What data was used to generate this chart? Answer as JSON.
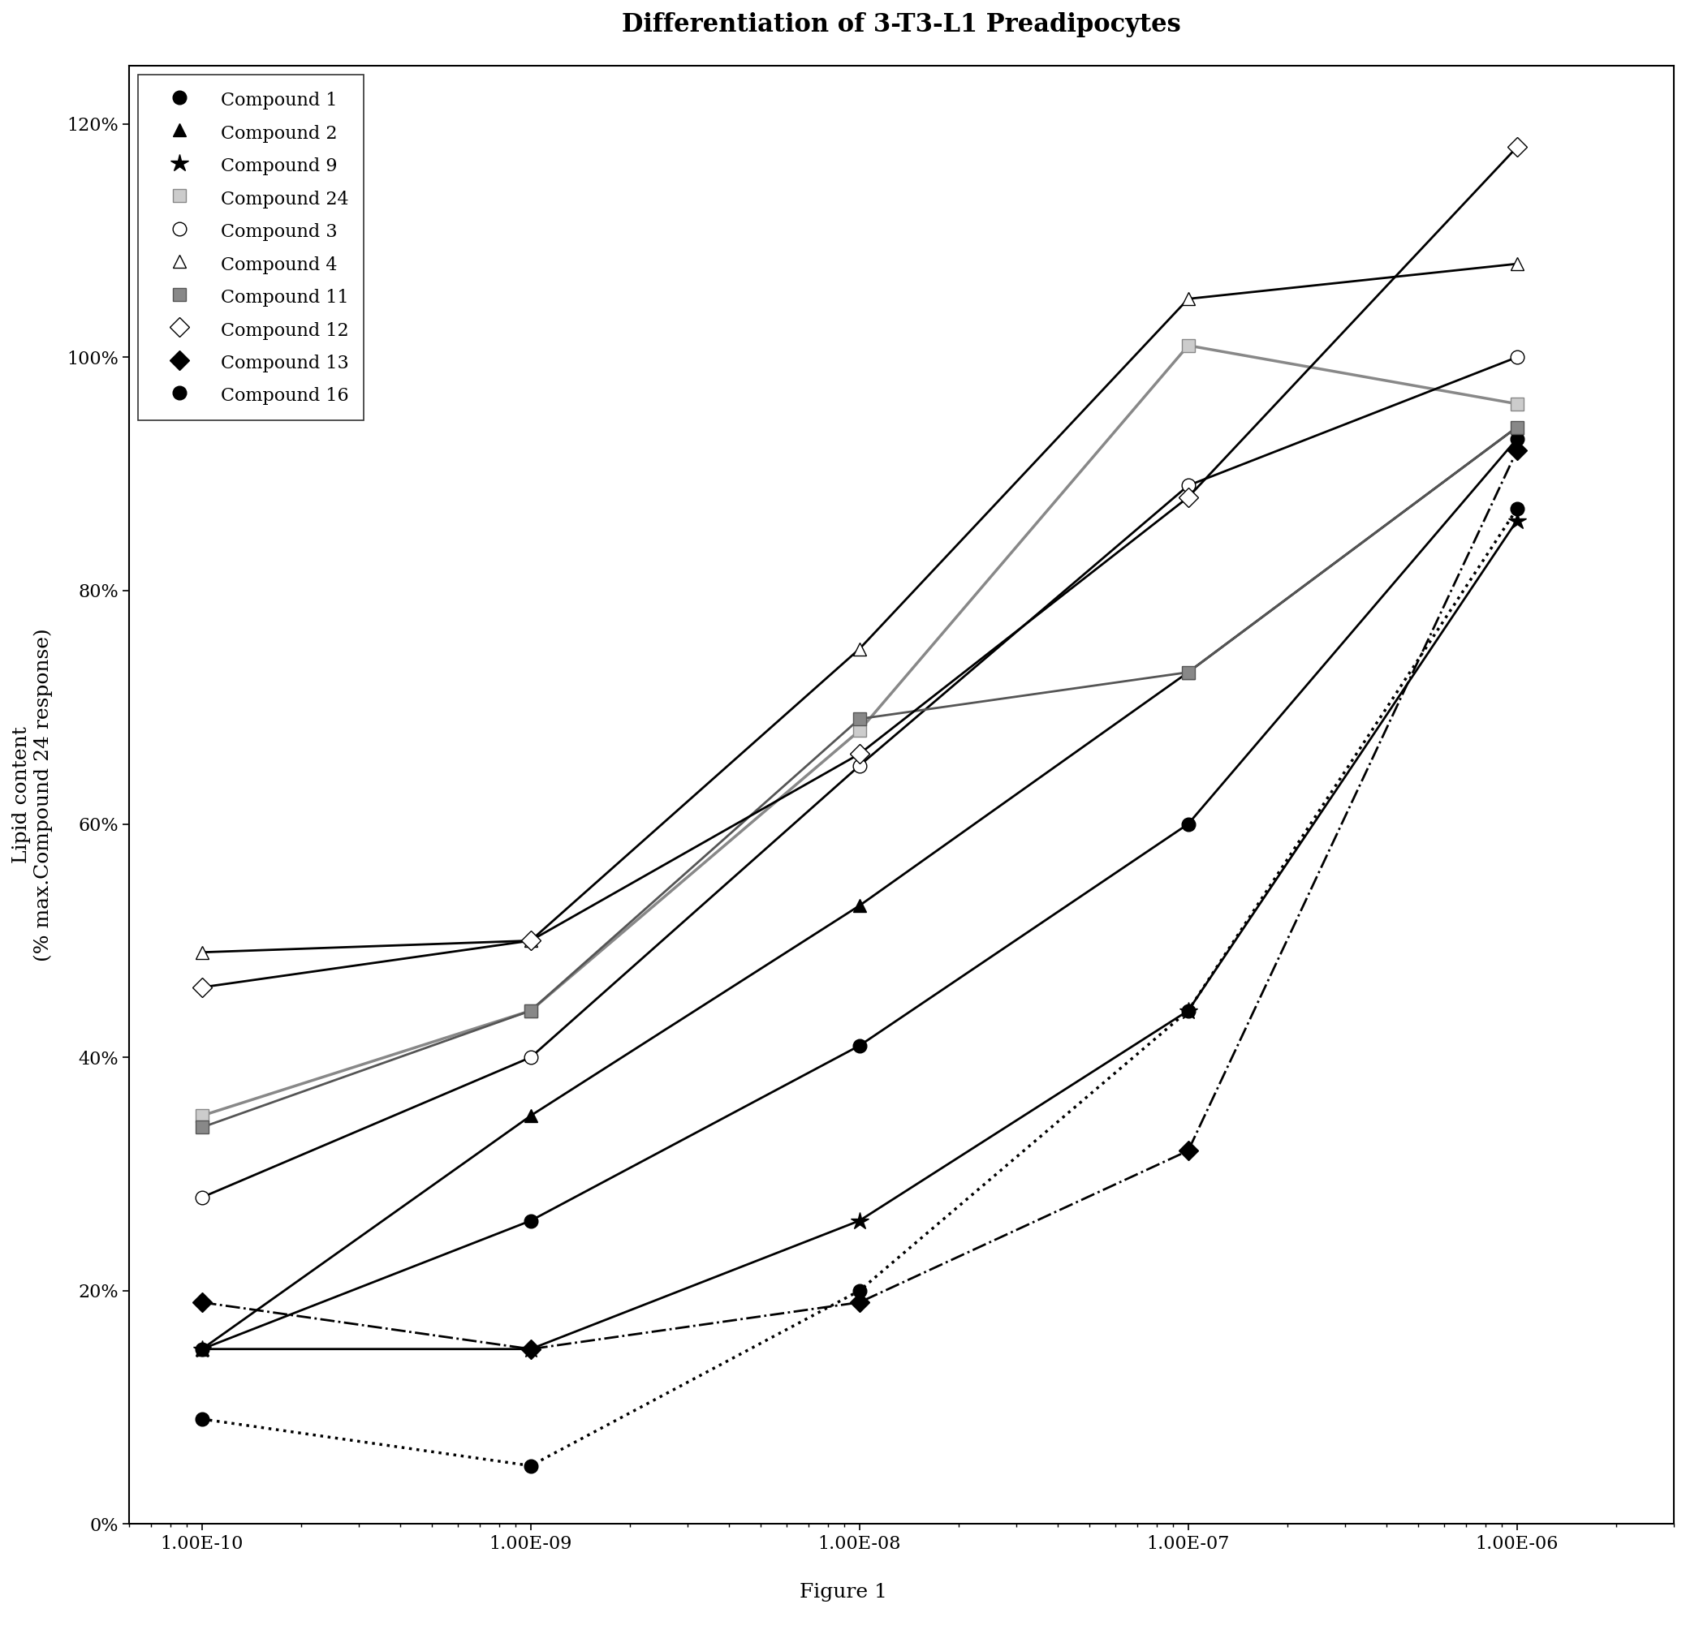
{
  "title": "Differentiation of 3-T3-L1 Preadipocytes",
  "ylabel": "Lipid content\n(% max.Compound 24 response)",
  "figure_caption": "Figure 1",
  "x_values": [
    1e-10,
    1e-09,
    1e-08,
    1e-07,
    1e-06
  ],
  "compounds": {
    "Compound 1": {
      "y": [
        0.15,
        0.26,
        0.41,
        0.6,
        0.93
      ],
      "color": "#000000",
      "linestyle": "-",
      "marker": "o",
      "markerfacecolor": "#000000",
      "markeredgecolor": "#000000",
      "markersize": 12,
      "linewidth": 2.0
    },
    "Compound 2": {
      "y": [
        0.15,
        0.35,
        0.53,
        0.73,
        0.94
      ],
      "color": "#000000",
      "linestyle": "-",
      "marker": "^",
      "markerfacecolor": "#000000",
      "markeredgecolor": "#000000",
      "markersize": 12,
      "linewidth": 2.0
    },
    "Compound 9": {
      "y": [
        0.15,
        0.15,
        0.26,
        0.44,
        0.86
      ],
      "color": "#000000",
      "linestyle": "-",
      "marker": "*",
      "markerfacecolor": "#000000",
      "markeredgecolor": "#000000",
      "markersize": 16,
      "linewidth": 2.0
    },
    "Compound 24": {
      "y": [
        0.35,
        0.44,
        0.68,
        1.01,
        0.96
      ],
      "color": "#888888",
      "linestyle": "-",
      "marker": "s",
      "markerfacecolor": "#cccccc",
      "markeredgecolor": "#888888",
      "markersize": 12,
      "linewidth": 2.5
    },
    "Compound 3": {
      "y": [
        0.28,
        0.4,
        0.65,
        0.89,
        1.0
      ],
      "color": "#000000",
      "linestyle": "-",
      "marker": "o",
      "markerfacecolor": "#ffffff",
      "markeredgecolor": "#000000",
      "markersize": 12,
      "linewidth": 2.0
    },
    "Compound 4": {
      "y": [
        0.49,
        0.5,
        0.75,
        1.05,
        1.08
      ],
      "color": "#000000",
      "linestyle": "-",
      "marker": "^",
      "markerfacecolor": "#ffffff",
      "markeredgecolor": "#000000",
      "markersize": 12,
      "linewidth": 2.0
    },
    "Compound 11": {
      "y": [
        0.34,
        0.44,
        0.69,
        0.73,
        0.94
      ],
      "color": "#555555",
      "linestyle": "-",
      "marker": "s",
      "markerfacecolor": "#888888",
      "markeredgecolor": "#555555",
      "markersize": 12,
      "linewidth": 2.0
    },
    "Compound 12": {
      "y": [
        0.46,
        0.5,
        0.66,
        0.88,
        1.18
      ],
      "color": "#000000",
      "linestyle": "-",
      "marker": "D",
      "markerfacecolor": "#ffffff",
      "markeredgecolor": "#000000",
      "markersize": 12,
      "linewidth": 2.0
    },
    "Compound 13": {
      "y": [
        0.19,
        0.15,
        0.19,
        0.32,
        0.92
      ],
      "color": "#000000",
      "linestyle": "-.",
      "marker": "D",
      "markerfacecolor": "#000000",
      "markeredgecolor": "#000000",
      "markersize": 12,
      "linewidth": 2.0
    },
    "Compound 16": {
      "y": [
        0.09,
        0.05,
        0.2,
        0.44,
        0.87
      ],
      "color": "#000000",
      "linestyle": ":",
      "marker": "o",
      "markerfacecolor": "#000000",
      "markeredgecolor": "#000000",
      "markersize": 12,
      "linewidth": 2.5
    }
  },
  "ylim": [
    0.0,
    1.25
  ],
  "yticks": [
    0.0,
    0.2,
    0.4,
    0.6,
    0.8,
    1.0,
    1.2
  ],
  "ytick_labels": [
    "0%",
    "20%",
    "40%",
    "60%",
    "80%",
    "100%",
    "120%"
  ],
  "background_color": "#ffffff",
  "title_fontsize": 22,
  "label_fontsize": 18,
  "tick_fontsize": 16,
  "legend_fontsize": 16
}
